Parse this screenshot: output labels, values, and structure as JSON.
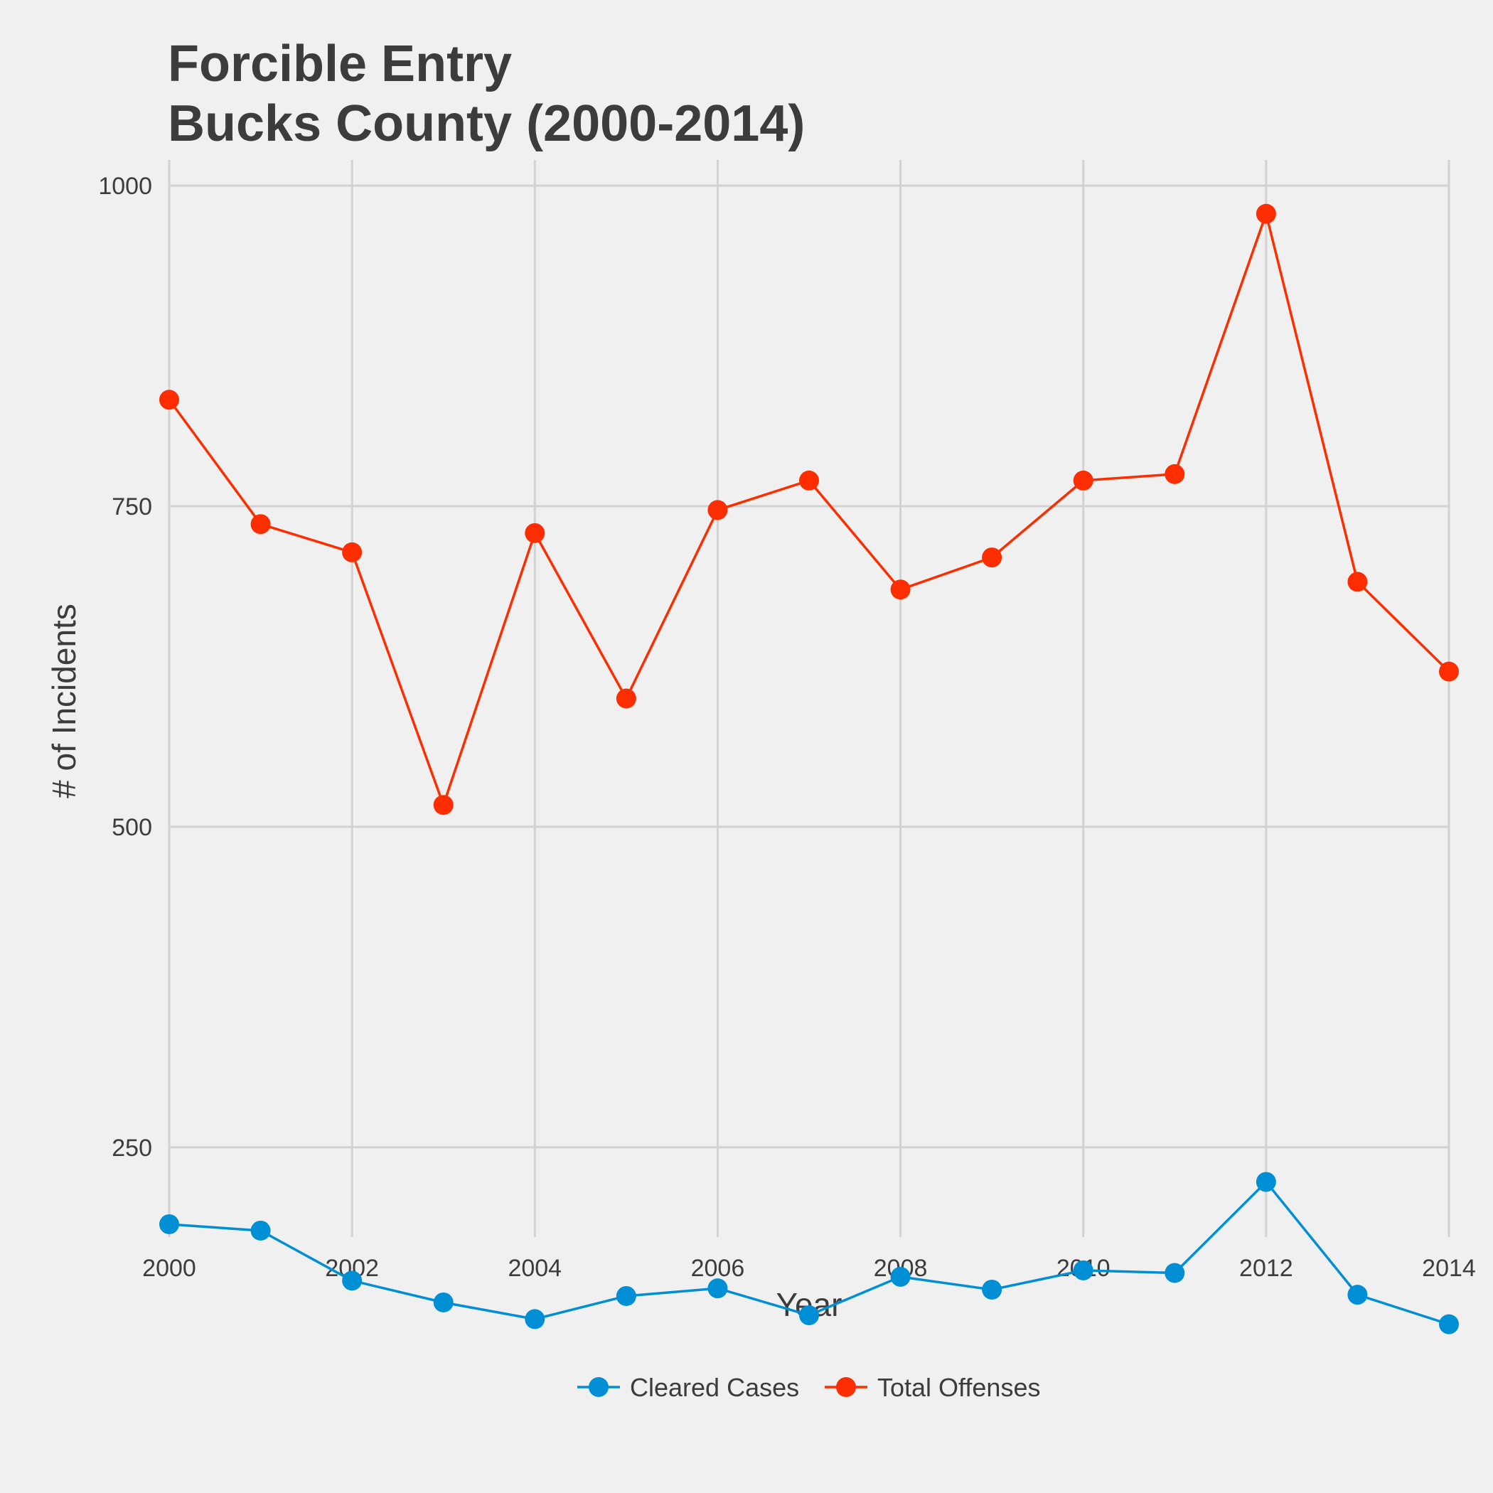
{
  "chart_data": {
    "type": "line",
    "title": "Forcible Entry",
    "subtitle": "Bucks County (2000-2014)",
    "xlabel": "Year",
    "ylabel": "# of Incidents",
    "x": [
      2000,
      2001,
      2002,
      2003,
      2004,
      2005,
      2006,
      2007,
      2008,
      2009,
      2010,
      2011,
      2012,
      2013,
      2014
    ],
    "xlim": [
      2000,
      2014
    ],
    "ylim": [
      180,
      1020
    ],
    "x_ticks": [
      "2000",
      "2002",
      "2004",
      "2006",
      "2008",
      "2010",
      "2012",
      "2014"
    ],
    "y_ticks": [
      "250",
      "500",
      "750",
      "1000"
    ],
    "grid": true,
    "legend_position": "bottom",
    "series": [
      {
        "name": "Cleared Cases",
        "color": "#008fd5",
        "values": [
          190,
          185,
          146,
          129,
          116,
          134,
          140,
          119,
          149,
          139,
          154,
          152,
          223,
          135,
          112
        ]
      },
      {
        "name": "Total Offenses",
        "color": "#fc2e00",
        "values": [
          833,
          736,
          714,
          517,
          729,
          600,
          747,
          770,
          685,
          710,
          770,
          775,
          978,
          691,
          621
        ]
      }
    ]
  }
}
